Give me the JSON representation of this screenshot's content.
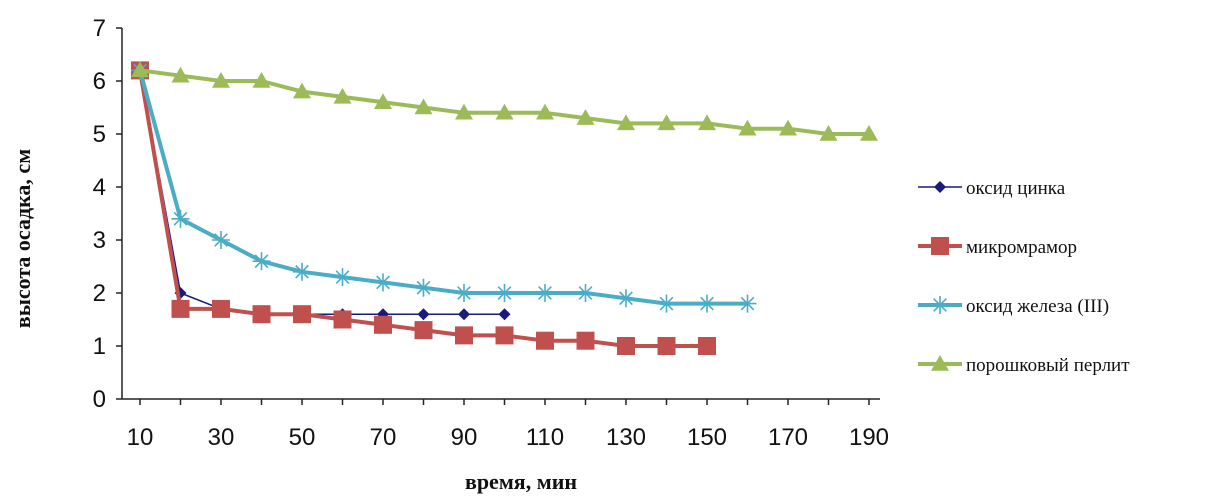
{
  "chart_data": {
    "type": "line",
    "xlabel": "время, мин",
    "ylabel": "высота осадка, см",
    "xlim": [
      10,
      190
    ],
    "ylim": [
      0,
      7
    ],
    "x_ticks": [
      10,
      30,
      50,
      70,
      90,
      110,
      130,
      150,
      170,
      190
    ],
    "y_ticks": [
      0,
      1,
      2,
      3,
      4,
      5,
      6,
      7
    ],
    "grid": false,
    "legend_position": "right",
    "series": [
      {
        "name": "оксид цинка",
        "color": "#1a1a7a",
        "marker": "diamond",
        "x": [
          10,
          20,
          30,
          40,
          50,
          60,
          70,
          80,
          90,
          100
        ],
        "values": [
          6.2,
          2.0,
          1.7,
          1.6,
          1.6,
          1.6,
          1.6,
          1.6,
          1.6,
          1.6
        ]
      },
      {
        "name": "микромрамор",
        "color": "#c0504d",
        "marker": "square",
        "x": [
          10,
          20,
          30,
          40,
          50,
          60,
          70,
          80,
          90,
          100,
          110,
          120,
          130,
          140,
          150
        ],
        "values": [
          6.2,
          1.7,
          1.7,
          1.6,
          1.6,
          1.5,
          1.4,
          1.3,
          1.2,
          1.2,
          1.1,
          1.1,
          1.0,
          1.0,
          1.0
        ]
      },
      {
        "name": "оксид железа (III)",
        "color": "#4bacc6",
        "marker": "star",
        "x": [
          10,
          20,
          30,
          40,
          50,
          60,
          70,
          80,
          90,
          100,
          110,
          120,
          130,
          140,
          150,
          160
        ],
        "values": [
          6.2,
          3.4,
          3.0,
          2.6,
          2.4,
          2.3,
          2.2,
          2.1,
          2.0,
          2.0,
          2.0,
          2.0,
          1.9,
          1.8,
          1.8,
          1.8
        ]
      },
      {
        "name": "порошковый перлит",
        "color": "#9bbb59",
        "marker": "triangle",
        "x": [
          10,
          20,
          30,
          40,
          50,
          60,
          70,
          80,
          90,
          100,
          110,
          120,
          130,
          140,
          150,
          160,
          170,
          180,
          190
        ],
        "values": [
          6.2,
          6.1,
          6.0,
          6.0,
          5.8,
          5.7,
          5.6,
          5.5,
          5.4,
          5.4,
          5.4,
          5.3,
          5.2,
          5.2,
          5.2,
          5.1,
          5.1,
          5.0,
          5.0
        ]
      }
    ]
  }
}
